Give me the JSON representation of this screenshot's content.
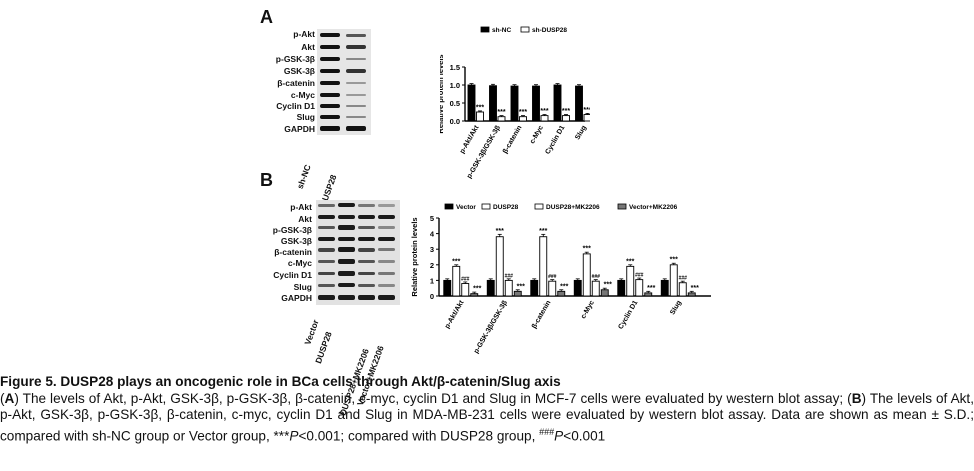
{
  "figure": {
    "panel_a_label": "A",
    "panel_b_label": "B",
    "panel_a_blot": {
      "rows": [
        "p-Akt",
        "Akt",
        "p-GSK-3β",
        "GSK-3β",
        "β-catenin",
        "c-Myc",
        "Cyclin D1",
        "Slug",
        "GAPDH"
      ],
      "lanes": [
        "sh-NC",
        "sh-DUSP28"
      ]
    },
    "panel_b_blot": {
      "rows": [
        "p-Akt",
        "Akt",
        "p-GSK-3β",
        "GSK-3β",
        "β-catenin",
        "c-Myc",
        "Cyclin D1",
        "Slug",
        "GAPDH"
      ],
      "lanes": [
        "Vector",
        "DUSP28",
        "DUSP28+MK2206",
        "Vector+MK2206"
      ]
    }
  },
  "chart_data": [
    {
      "type": "bar",
      "ylabel": "Relative protein levels",
      "ylim": [
        0,
        1.5
      ],
      "yticks": [
        "0.0",
        "0.5",
        "1.0",
        "1.5"
      ],
      "categories": [
        "p-Akt/Akt",
        "p-GSK-3β/GSK-3β",
        "β-catenin",
        "c-Myc",
        "Cyclin D1",
        "Slug"
      ],
      "series": [
        {
          "name": "sh-NC",
          "color": "#000000",
          "values": [
            1.0,
            0.98,
            0.97,
            0.97,
            1.0,
            0.97
          ]
        },
        {
          "name": "sh-DUSP28",
          "color": "#ffffff",
          "values": [
            0.25,
            0.12,
            0.12,
            0.15,
            0.15,
            0.18
          ]
        }
      ],
      "annotations": [
        "***",
        "***",
        "***",
        "***",
        "***",
        "***"
      ]
    },
    {
      "type": "bar",
      "ylabel": "Relative protein levels",
      "ylim": [
        0,
        5
      ],
      "yticks": [
        "0",
        "1",
        "2",
        "3",
        "4",
        "5"
      ],
      "categories": [
        "p-Akt/Akt",
        "p-GSK-3β/GSK-3β",
        "β-catenin",
        "c-Myc",
        "Cyclin D1",
        "Slug"
      ],
      "series": [
        {
          "name": "Vector",
          "color": "#000000",
          "values": [
            1.0,
            1.0,
            1.0,
            1.0,
            1.0,
            1.0
          ]
        },
        {
          "name": "DUSP28",
          "color": "#ffffff",
          "values": [
            1.9,
            3.8,
            3.8,
            2.7,
            1.9,
            2.0
          ]
        },
        {
          "name": "DUSP28+MK2206",
          "color": "#ffffff",
          "values": [
            0.8,
            1.0,
            0.95,
            0.95,
            1.05,
            0.85
          ]
        },
        {
          "name": "Vector+MK2206",
          "color": "#777777",
          "values": [
            0.15,
            0.3,
            0.3,
            0.4,
            0.2,
            0.2
          ]
        }
      ],
      "annotations": {
        "DUSP28": [
          "***",
          "***",
          "***",
          "***",
          "***",
          "***"
        ],
        "DUSP28+MK2206": [
          "###",
          "###",
          "###",
          "###",
          "###",
          "###"
        ],
        "Vector+MK2206": [
          "***",
          "***",
          "***",
          "***",
          "***",
          "***"
        ]
      }
    }
  ],
  "caption": {
    "title": "Figure  5. DUSP28 plays an oncogenic role in BCa cells through Akt/β-catenin/Slug axis",
    "body_a_label": "A",
    "body_a": ") The levels of Akt, p-Akt, GSK-3β, p-GSK-3β, β-catenin, c-myc, cyclin D1 and Slug in MCF-7 cells were evaluated by western blot assay; (",
    "body_b_label": "B",
    "body_b": ") The levels of Akt, p-Akt, GSK-3β, p-GSK-3β, β-catenin, c-myc, cyclin D1 and Slug in MDA-MB-231 cells were evaluated by western blot assay. Data are shown as mean ± S.D.; compared with sh-NC group or Vector group, ***",
    "p1": "P",
    "p1_rest": "<0.001; compared with DUSP28 group, ",
    "hash": "###",
    "p2": "P",
    "p2_rest": "<0.001"
  }
}
